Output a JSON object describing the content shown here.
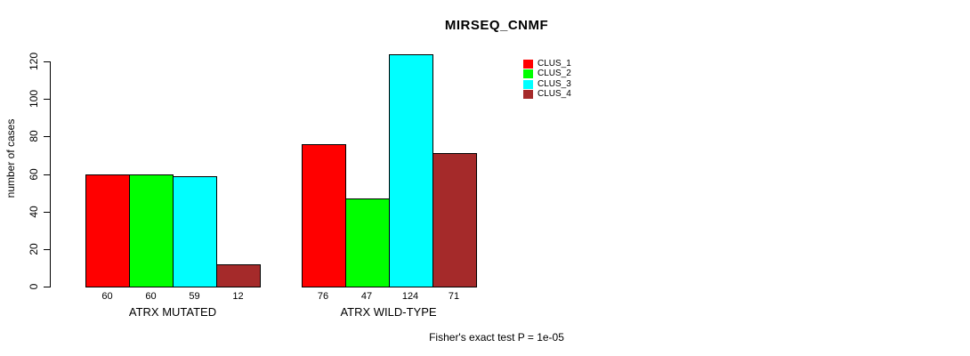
{
  "chart_data": {
    "type": "bar",
    "title": "MIRSEQ_CNMF",
    "ylabel": "number of cases",
    "xlabel": "",
    "categories": [
      "ATRX MUTATED",
      "ATRX WILD-TYPE"
    ],
    "series": [
      {
        "name": "CLUS_1",
        "color": "#FF0000",
        "values": [
          60,
          76
        ]
      },
      {
        "name": "CLUS_2",
        "color": "#00FF00",
        "values": [
          60,
          47
        ]
      },
      {
        "name": "CLUS_3",
        "color": "#00FFFF",
        "values": [
          59,
          124
        ]
      },
      {
        "name": "CLUS_4",
        "color": "#A52A2A",
        "values": [
          12,
          71
        ]
      }
    ],
    "yticks": [
      0,
      20,
      40,
      60,
      80,
      100,
      120
    ],
    "ylim": [
      0,
      120
    ],
    "grid": false,
    "bar_border_color": "#000000",
    "legend_position": "top-right",
    "legend_entries": [
      "CLUS_1",
      "CLUS_2",
      "CLUS_3",
      "CLUS_4"
    ],
    "footnote": "Fisher's exact test P = 1e-05"
  }
}
